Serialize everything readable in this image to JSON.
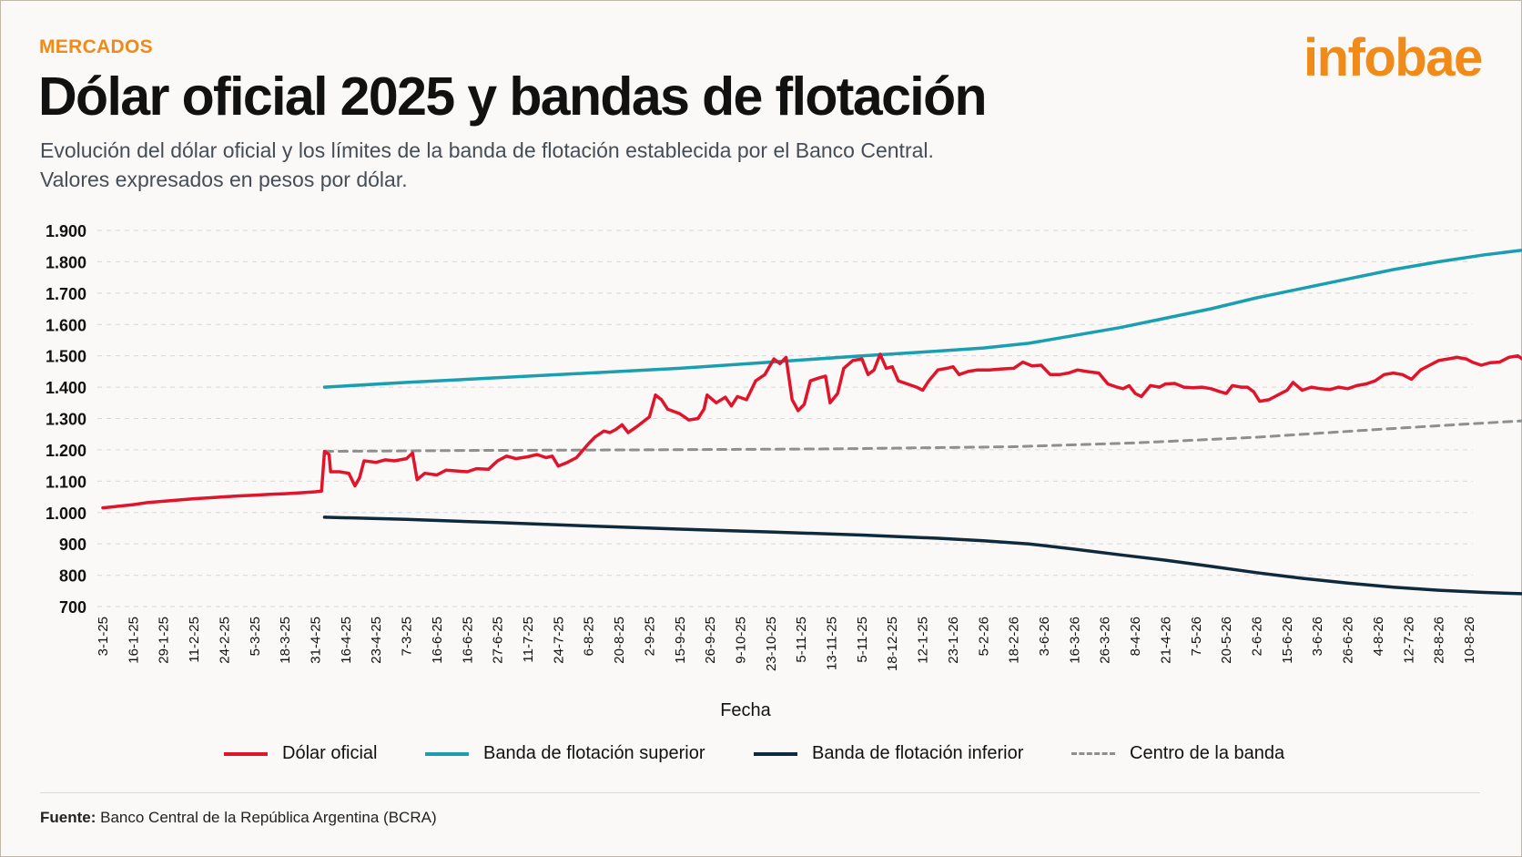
{
  "header": {
    "section": "MERCADOS",
    "brand": "infobae",
    "title": "Dólar oficial 2025 y bandas de flotación",
    "subtitle_line1": "Evolución del dólar oficial y los límites de la banda de flotación establecida por el Banco Central.",
    "subtitle_line2": "Valores expresados en pesos por dólar."
  },
  "footer": {
    "source_label": "Fuente:",
    "source_text": "Banco Central de la República Argentina (BCRA)"
  },
  "colors": {
    "accent": "#f08a19",
    "oficial": "#e0142b",
    "superior": "#1a9fb0",
    "inferior": "#0f2a3d",
    "centro": "#8f8f8f",
    "grid": "#d8d8d8"
  },
  "chart_data": {
    "type": "line",
    "xlabel": "Fecha",
    "ylabel": "",
    "ylim": [
      700,
      1900
    ],
    "yticks": [
      700,
      800,
      900,
      1000,
      1100,
      1200,
      1300,
      1400,
      1500,
      1600,
      1700,
      1800,
      1900
    ],
    "ytick_labels": [
      "700",
      "800",
      "900",
      "1.000",
      "1.100",
      "1.200",
      "1.300",
      "1.400",
      "1.500",
      "1.600",
      "1.700",
      "1.800",
      "1.900"
    ],
    "categories": [
      "3-1-25",
      "16-1-25",
      "29-1-25",
      "11-2-25",
      "24-2-25",
      "5-3-25",
      "18-3-25",
      "31-4-25",
      "16-4-25",
      "23-4-25",
      "7-3-25",
      "16-6-25",
      "16-6-25",
      "27-6-25",
      "11-7-25",
      "24-7-25",
      "6-8-25",
      "20-8-25",
      "2-9-25",
      "15-9-25",
      "26-9-25",
      "9-10-25",
      "23-10-25",
      "5-11-25",
      "13-11-25",
      "5-11-25",
      "18-12-25",
      "12-1-25",
      "23-1-26",
      "5-2-26",
      "18-2-26",
      "3-6-26",
      "16-3-26",
      "26-3-26",
      "8-4-26",
      "21-4-26",
      "7-5-26",
      "20-5-26",
      "2-6-26",
      "15-6-26",
      "3-6-26",
      "26-6-26",
      "4-8-26",
      "12-7-26",
      "28-8-26",
      "10-8-26"
    ],
    "grid": "horizontal dashed",
    "legend_position": "bottom",
    "series": [
      {
        "name": "Dólar oficial",
        "color": "#e0142b",
        "points": [
          [
            0,
            1015
          ],
          [
            0.5,
            1020
          ],
          [
            1,
            1025
          ],
          [
            1.5,
            1032
          ],
          [
            2,
            1036
          ],
          [
            2.5,
            1040
          ],
          [
            3,
            1044
          ],
          [
            3.5,
            1047
          ],
          [
            4,
            1050
          ],
          [
            4.5,
            1053
          ],
          [
            5,
            1055
          ],
          [
            5.5,
            1058
          ],
          [
            6,
            1060
          ],
          [
            6.5,
            1063
          ],
          [
            7,
            1066
          ],
          [
            7.2,
            1068
          ],
          [
            7.3,
            1195
          ],
          [
            7.45,
            1185
          ],
          [
            7.5,
            1130
          ],
          [
            7.8,
            1130
          ],
          [
            8.1,
            1125
          ],
          [
            8.3,
            1085
          ],
          [
            8.45,
            1110
          ],
          [
            8.6,
            1165
          ],
          [
            9,
            1160
          ],
          [
            9.3,
            1168
          ],
          [
            9.6,
            1165
          ],
          [
            10,
            1172
          ],
          [
            10.2,
            1190
          ],
          [
            10.35,
            1105
          ],
          [
            10.6,
            1125
          ],
          [
            11,
            1120
          ],
          [
            11.3,
            1135
          ],
          [
            11.7,
            1132
          ],
          [
            12,
            1130
          ],
          [
            12.3,
            1140
          ],
          [
            12.7,
            1138
          ],
          [
            13,
            1165
          ],
          [
            13.3,
            1180
          ],
          [
            13.6,
            1172
          ],
          [
            14,
            1178
          ],
          [
            14.3,
            1185
          ],
          [
            14.6,
            1175
          ],
          [
            14.8,
            1180
          ],
          [
            15,
            1148
          ],
          [
            15.3,
            1160
          ],
          [
            15.6,
            1175
          ],
          [
            16,
            1220
          ],
          [
            16.2,
            1240
          ],
          [
            16.5,
            1260
          ],
          [
            16.7,
            1255
          ],
          [
            16.9,
            1265
          ],
          [
            17.1,
            1280
          ],
          [
            17.3,
            1255
          ],
          [
            17.6,
            1275
          ],
          [
            18,
            1305
          ],
          [
            18.2,
            1375
          ],
          [
            18.4,
            1360
          ],
          [
            18.6,
            1330
          ],
          [
            19,
            1315
          ],
          [
            19.3,
            1295
          ],
          [
            19.6,
            1300
          ],
          [
            19.8,
            1330
          ],
          [
            19.9,
            1375
          ],
          [
            20.2,
            1350
          ],
          [
            20.5,
            1368
          ],
          [
            20.7,
            1340
          ],
          [
            20.9,
            1370
          ],
          [
            21.2,
            1360
          ],
          [
            21.5,
            1420
          ],
          [
            21.8,
            1440
          ],
          [
            22.1,
            1490
          ],
          [
            22.3,
            1475
          ],
          [
            22.5,
            1495
          ],
          [
            22.7,
            1360
          ],
          [
            22.9,
            1325
          ],
          [
            23.1,
            1345
          ],
          [
            23.3,
            1420
          ],
          [
            23.6,
            1430
          ],
          [
            23.8,
            1435
          ],
          [
            23.95,
            1350
          ],
          [
            24.2,
            1380
          ],
          [
            24.4,
            1460
          ],
          [
            24.7,
            1485
          ],
          [
            25,
            1490
          ],
          [
            25.2,
            1440
          ],
          [
            25.4,
            1455
          ],
          [
            25.6,
            1505
          ],
          [
            25.8,
            1460
          ],
          [
            26,
            1465
          ],
          [
            26.2,
            1420
          ],
          [
            26.5,
            1410
          ],
          [
            26.8,
            1400
          ],
          [
            27,
            1390
          ],
          [
            27.2,
            1420
          ],
          [
            27.5,
            1455
          ],
          [
            27.8,
            1460
          ],
          [
            28,
            1465
          ],
          [
            28.2,
            1440
          ],
          [
            28.5,
            1450
          ],
          [
            28.8,
            1455
          ],
          [
            29.2,
            1455
          ],
          [
            29.6,
            1458
          ],
          [
            30,
            1460
          ],
          [
            30.3,
            1480
          ],
          [
            30.6,
            1468
          ],
          [
            30.9,
            1470
          ],
          [
            31.2,
            1440
          ],
          [
            31.5,
            1440
          ],
          [
            31.8,
            1445
          ],
          [
            32.1,
            1455
          ],
          [
            32.4,
            1450
          ],
          [
            32.8,
            1445
          ],
          [
            33.1,
            1410
          ],
          [
            33.4,
            1400
          ],
          [
            33.6,
            1395
          ],
          [
            33.8,
            1405
          ],
          [
            34,
            1380
          ],
          [
            34.2,
            1370
          ],
          [
            34.5,
            1405
          ],
          [
            34.8,
            1400
          ],
          [
            35,
            1410
          ],
          [
            35.3,
            1412
          ],
          [
            35.6,
            1400
          ],
          [
            35.9,
            1398
          ],
          [
            36.2,
            1400
          ],
          [
            36.5,
            1395
          ],
          [
            36.8,
            1385
          ],
          [
            37,
            1380
          ],
          [
            37.2,
            1405
          ],
          [
            37.5,
            1400
          ],
          [
            37.7,
            1400
          ],
          [
            37.9,
            1385
          ],
          [
            38.1,
            1355
          ],
          [
            38.4,
            1360
          ],
          [
            38.7,
            1375
          ],
          [
            39,
            1390
          ],
          [
            39.2,
            1415
          ],
          [
            39.5,
            1390
          ],
          [
            39.8,
            1400
          ],
          [
            40.1,
            1395
          ],
          [
            40.4,
            1392
          ],
          [
            40.7,
            1400
          ],
          [
            41,
            1395
          ],
          [
            41.3,
            1405
          ],
          [
            41.6,
            1410
          ],
          [
            41.9,
            1420
          ],
          [
            42.2,
            1440
          ],
          [
            42.5,
            1445
          ],
          [
            42.8,
            1440
          ],
          [
            43.1,
            1425
          ],
          [
            43.4,
            1455
          ],
          [
            43.7,
            1470
          ],
          [
            44,
            1485
          ],
          [
            44.3,
            1490
          ],
          [
            44.6,
            1495
          ],
          [
            44.9,
            1490
          ],
          [
            45.1,
            1480
          ],
          [
            45.4,
            1470
          ],
          [
            45.7,
            1478
          ],
          [
            46,
            1480
          ],
          [
            46.3,
            1495
          ],
          [
            46.6,
            1500
          ],
          [
            46.9,
            1480
          ],
          [
            47.2,
            1500
          ],
          [
            47.5,
            1498
          ],
          [
            47.8,
            1500
          ]
        ]
      },
      {
        "name": "Banda de flotación superior",
        "color": "#1a9fb0",
        "points": [
          [
            7.3,
            1400
          ],
          [
            10,
            1415
          ],
          [
            13,
            1430
          ],
          [
            16,
            1445
          ],
          [
            19,
            1460
          ],
          [
            22,
            1480
          ],
          [
            25,
            1500
          ],
          [
            27.5,
            1515
          ],
          [
            29,
            1525
          ],
          [
            30.5,
            1540
          ],
          [
            32,
            1565
          ],
          [
            33.5,
            1590
          ],
          [
            35,
            1620
          ],
          [
            36.5,
            1650
          ],
          [
            38,
            1685
          ],
          [
            39.5,
            1715
          ],
          [
            41,
            1745
          ],
          [
            42.5,
            1775
          ],
          [
            44,
            1800
          ],
          [
            45.5,
            1822
          ],
          [
            47,
            1840
          ],
          [
            47.8,
            1852
          ]
        ]
      },
      {
        "name": "Banda de flotación inferior",
        "color": "#0f2a3d",
        "points": [
          [
            7.3,
            985
          ],
          [
            10,
            978
          ],
          [
            13,
            968
          ],
          [
            16,
            957
          ],
          [
            19,
            947
          ],
          [
            22,
            938
          ],
          [
            25,
            928
          ],
          [
            27.5,
            918
          ],
          [
            29,
            910
          ],
          [
            30.5,
            900
          ],
          [
            32,
            883
          ],
          [
            33.5,
            865
          ],
          [
            35,
            848
          ],
          [
            36.5,
            828
          ],
          [
            38,
            808
          ],
          [
            39.5,
            790
          ],
          [
            41,
            775
          ],
          [
            42.5,
            762
          ],
          [
            44,
            752
          ],
          [
            45.5,
            745
          ],
          [
            47,
            740
          ],
          [
            47.8,
            738
          ]
        ]
      },
      {
        "name": "Centro de la banda",
        "color": "#8f8f8f",
        "dashed": true,
        "points": [
          [
            7.3,
            1195
          ],
          [
            12,
            1198
          ],
          [
            18,
            1200
          ],
          [
            24,
            1203
          ],
          [
            30,
            1210
          ],
          [
            34,
            1222
          ],
          [
            38,
            1240
          ],
          [
            42,
            1265
          ],
          [
            45,
            1283
          ],
          [
            47.8,
            1298
          ]
        ]
      }
    ]
  }
}
